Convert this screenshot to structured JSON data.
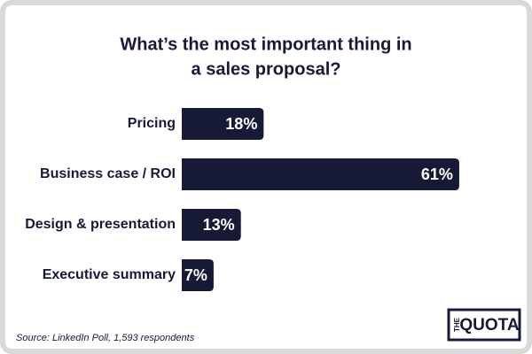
{
  "chart_data": {
    "type": "bar",
    "orientation": "horizontal",
    "title": [
      "What’s the most important thing in",
      "a sales proposal?"
    ],
    "categories": [
      "Pricing",
      "Business case / ROI",
      "Design & presentation",
      "Executive summary"
    ],
    "values": [
      18,
      61,
      13,
      7
    ],
    "value_labels": [
      "18%",
      "61%",
      "13%",
      "7%"
    ],
    "color": "#161a36",
    "source": "Source: LinkedIn Poll, 1,593 respondents",
    "logo": {
      "small": "THE",
      "main": "QUOTA"
    }
  }
}
